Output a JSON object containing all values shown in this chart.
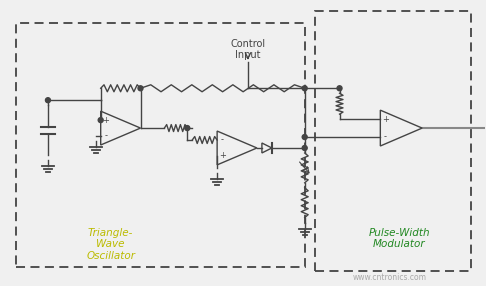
{
  "bg_color": "#f0f0f0",
  "line_color": "#444444",
  "dashed_box_color": "#444444",
  "text_triangle_wave": "Triangle-\nWave\nOscillator",
  "text_pwm": "Pulse-Width\nModulator",
  "text_control": "Control\nInput",
  "text_watermark": "www.cntronics.com",
  "label_color_yellow": "#bbbb00",
  "label_color_green": "#228822",
  "figsize": [
    4.86,
    2.86
  ],
  "dpi": 100
}
